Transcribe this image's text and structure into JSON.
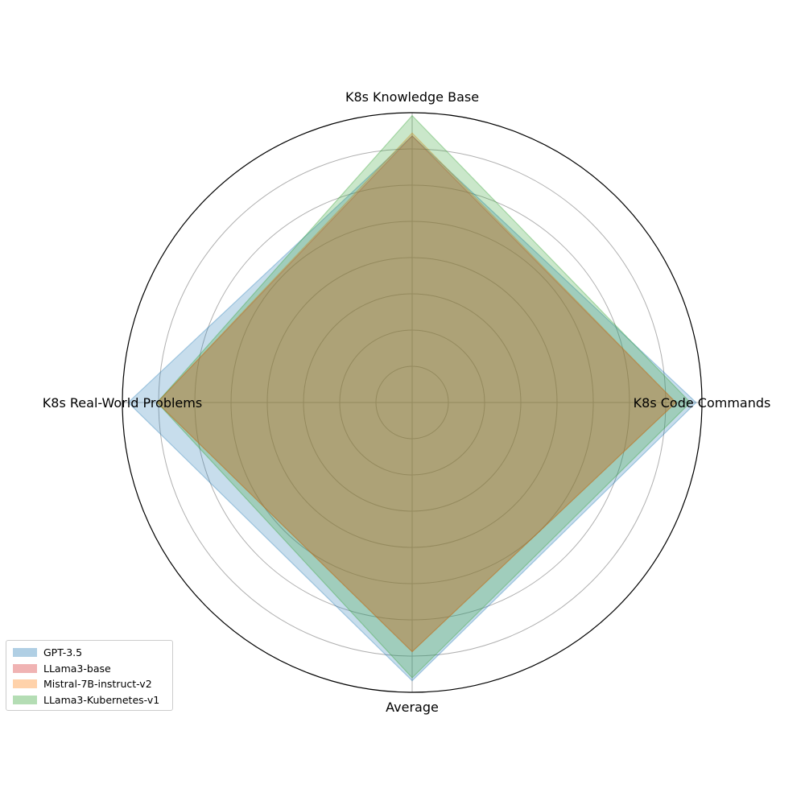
{
  "chart_data": {
    "type": "radar",
    "title": "",
    "axes": [
      "K8s Code Commands",
      "K8s Knowledge Base",
      "K8s Real-World Problems",
      "Average"
    ],
    "rlim": [
      0,
      1
    ],
    "grid": true,
    "legend_position": "bottom-left",
    "series": [
      {
        "name": "GPT-3.5",
        "values": [
          0.98,
          0.92,
          0.98,
          0.96
        ],
        "color": "#1f77b4"
      },
      {
        "name": "LLama3-base",
        "values": [
          0.91,
          0.92,
          0.88,
          0.86
        ],
        "color": "#d62728"
      },
      {
        "name": "Mistral-7B-instruct-v2",
        "values": [
          0.91,
          0.93,
          0.88,
          0.86
        ],
        "color": "#ff7f0e"
      },
      {
        "name": "LLama3-Kubernetes-v1",
        "values": [
          0.96,
          0.99,
          0.88,
          0.95
        ],
        "color": "#2ca02c"
      }
    ]
  }
}
